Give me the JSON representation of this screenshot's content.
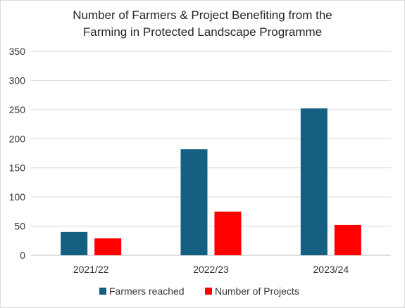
{
  "chart_data": {
    "type": "bar",
    "title": [
      "Number of Farmers & Project Benefiting from the",
      "Farming in Protected Landscape Programme"
    ],
    "categories": [
      "2021/22",
      "2022/23",
      "2023/24"
    ],
    "series": [
      {
        "name": "Farmers reached",
        "values": [
          40,
          182,
          252
        ],
        "color": "#156082"
      },
      {
        "name": "Number of Projects",
        "values": [
          29,
          75,
          52
        ],
        "color": "#ff0000"
      }
    ],
    "y_ticks": [
      "0",
      "50",
      "100",
      "150",
      "200",
      "250",
      "300",
      "350"
    ],
    "ylim": [
      0,
      350
    ],
    "grid": true,
    "legend": "bottom"
  }
}
